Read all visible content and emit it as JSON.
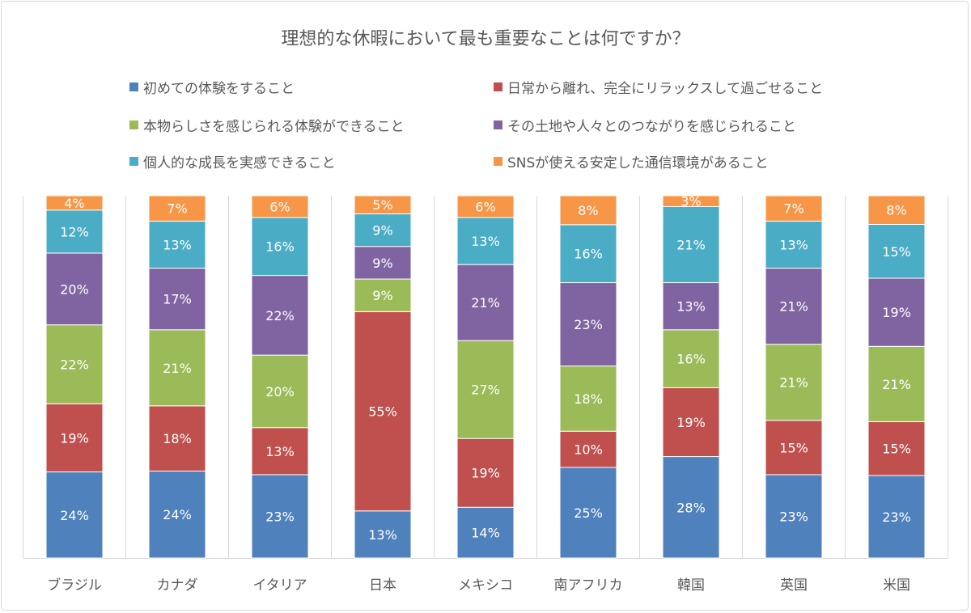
{
  "chart_data": {
    "type": "bar",
    "stacked": "percent",
    "title": "理想的な休暇において最も重要なことは何ですか？",
    "categories": [
      "ブラジル",
      "カナダ",
      "イタリア",
      "日本",
      "メキシコ",
      "南アフリカ",
      "韓国",
      "英国",
      "米国"
    ],
    "series": [
      {
        "name": "初めての体験をすること",
        "color": "#4F81BD",
        "values": [
          24,
          24,
          23,
          13,
          14,
          25,
          28,
          23,
          23
        ]
      },
      {
        "name": "日常から離れ、完全にリラックスして過ごせること",
        "color": "#C0504D",
        "values": [
          19,
          18,
          13,
          55,
          19,
          10,
          19,
          15,
          15
        ]
      },
      {
        "name": "本物らしさを感じられる体験ができること",
        "color": "#9BBB59",
        "values": [
          22,
          21,
          20,
          9,
          27,
          18,
          16,
          21,
          21
        ]
      },
      {
        "name": "その土地や人々とのつながりを感じられること",
        "color": "#8064A2",
        "values": [
          20,
          17,
          22,
          9,
          21,
          23,
          13,
          21,
          19
        ]
      },
      {
        "name": "個人的な成長を実感できること",
        "color": "#4BACC6",
        "values": [
          12,
          13,
          16,
          9,
          13,
          16,
          21,
          13,
          15
        ]
      },
      {
        "name": "SNSが使える安定した通信環境があること",
        "color": "#F79646",
        "values": [
          4,
          7,
          6,
          5,
          6,
          8,
          3,
          7,
          8
        ]
      }
    ],
    "value_format": "percent",
    "legend": "top",
    "grid": false
  }
}
